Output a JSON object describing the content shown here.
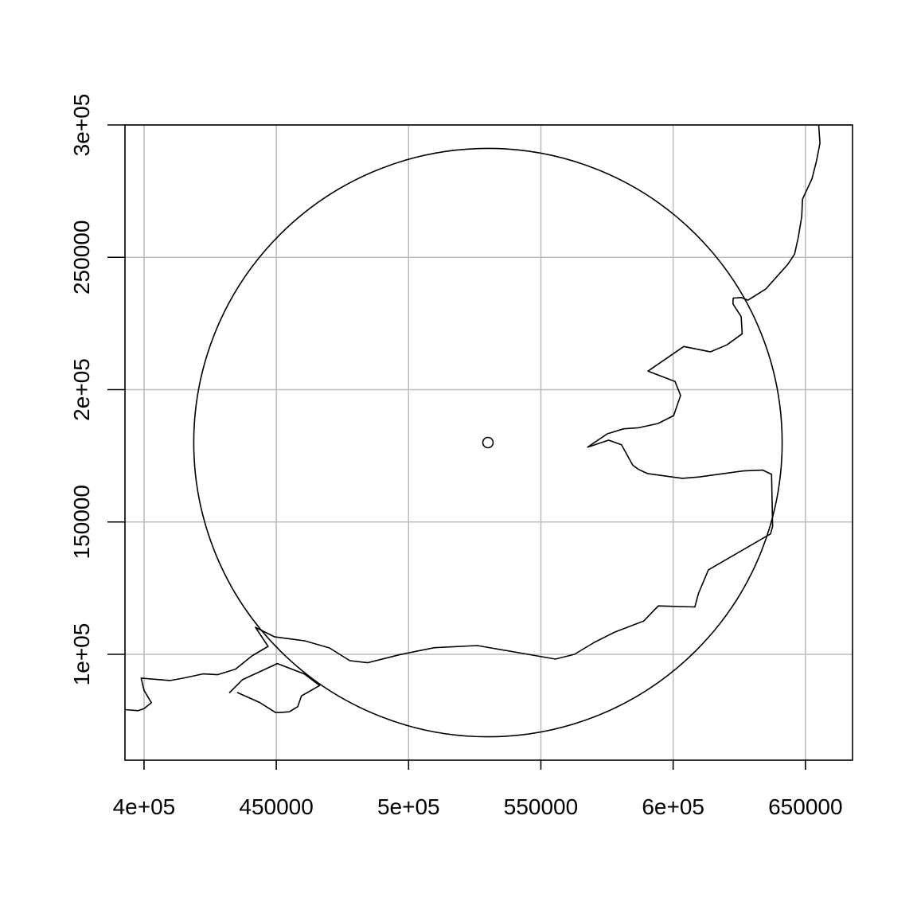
{
  "chart_data": {
    "type": "scatter",
    "xlim": [
      392800,
      667800
    ],
    "ylim": [
      60000,
      300000
    ],
    "x_ticks": [
      {
        "value": 400000,
        "label": "4e+05"
      },
      {
        "value": 450000,
        "label": "450000"
      },
      {
        "value": 500000,
        "label": "5e+05"
      },
      {
        "value": 550000,
        "label": "550000"
      },
      {
        "value": 600000,
        "label": "6e+05"
      },
      {
        "value": 650000,
        "label": "650000"
      }
    ],
    "y_ticks": [
      {
        "value": 100000,
        "label": "1e+05"
      },
      {
        "value": 150000,
        "label": "150000"
      },
      {
        "value": 200000,
        "label": "2e+05"
      },
      {
        "value": 250000,
        "label": "250000"
      },
      {
        "value": 300000,
        "label": "3e+05"
      }
    ],
    "grid": true,
    "grid_color": "#bebebe",
    "line_color": "#000000",
    "center_point": {
      "x": 530000,
      "y": 180000
    },
    "buffer_circle": {
      "cx": 530000,
      "cy": 180000,
      "r": 111200
    },
    "coastlines": [
      {
        "name": "south-and-east-coast",
        "points": [
          [
            392800,
            79100
          ],
          [
            397800,
            78700
          ],
          [
            400000,
            79500
          ],
          [
            402800,
            81700
          ],
          [
            400000,
            86400
          ],
          [
            398900,
            91000
          ],
          [
            409900,
            90100
          ],
          [
            414900,
            91000
          ],
          [
            422300,
            92600
          ],
          [
            427800,
            92300
          ],
          [
            434600,
            94400
          ],
          [
            440800,
            99400
          ],
          [
            446900,
            103000
          ],
          [
            442100,
            110200
          ],
          [
            449400,
            106600
          ],
          [
            460700,
            105100
          ],
          [
            470100,
            102400
          ],
          [
            477800,
            97600
          ],
          [
            484500,
            96800
          ],
          [
            496800,
            99900
          ],
          [
            509700,
            102500
          ],
          [
            526000,
            103300
          ],
          [
            555500,
            98200
          ],
          [
            562700,
            100000
          ],
          [
            570200,
            104500
          ],
          [
            577900,
            108400
          ],
          [
            588900,
            112600
          ],
          [
            594400,
            118300
          ],
          [
            608200,
            117900
          ],
          [
            609600,
            123100
          ],
          [
            613300,
            131900
          ],
          [
            636800,
            145500
          ],
          [
            637600,
            148300
          ],
          [
            637200,
            168000
          ],
          [
            633900,
            169600
          ],
          [
            626600,
            169300
          ],
          [
            609800,
            167000
          ],
          [
            603500,
            166500
          ],
          [
            590300,
            168300
          ],
          [
            586900,
            169900
          ],
          [
            584700,
            171500
          ],
          [
            580500,
            179200
          ],
          [
            575600,
            180900
          ],
          [
            567700,
            178300
          ],
          [
            575100,
            183300
          ],
          [
            581300,
            185200
          ],
          [
            586900,
            185600
          ],
          [
            594200,
            187200
          ],
          [
            600200,
            190200
          ],
          [
            602800,
            197800
          ],
          [
            600700,
            203100
          ],
          [
            590500,
            207000
          ],
          [
            604000,
            216300
          ],
          [
            614100,
            214300
          ],
          [
            620300,
            216900
          ],
          [
            626100,
            221100
          ],
          [
            625700,
            227600
          ],
          [
            622600,
            232400
          ],
          [
            622700,
            234600
          ],
          [
            625700,
            234800
          ],
          [
            628300,
            233800
          ],
          [
            635000,
            238000
          ],
          [
            643300,
            247300
          ],
          [
            645900,
            251200
          ],
          [
            647300,
            257600
          ],
          [
            648600,
            265500
          ],
          [
            648900,
            272000
          ],
          [
            652500,
            279700
          ],
          [
            654200,
            286500
          ],
          [
            655500,
            293100
          ],
          [
            655000,
            300000
          ]
        ]
      },
      {
        "name": "isle-of-wight",
        "points": [
          [
            432200,
            85400
          ],
          [
            437200,
            90400
          ],
          [
            450400,
            96500
          ],
          [
            460600,
            92600
          ],
          [
            466400,
            88200
          ],
          [
            459500,
            84300
          ],
          [
            458100,
            80200
          ],
          [
            454900,
            78300
          ],
          [
            451500,
            78000
          ],
          [
            449700,
            78000
          ],
          [
            443700,
            81800
          ],
          [
            435200,
            85600
          ]
        ]
      }
    ]
  }
}
